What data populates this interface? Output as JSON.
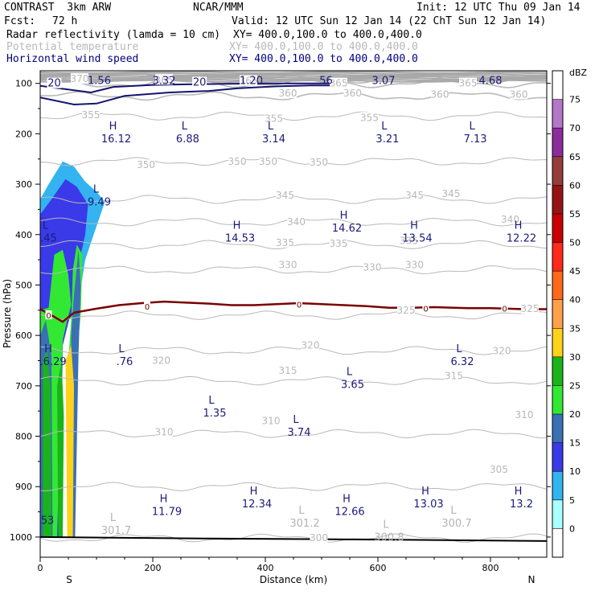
{
  "header": {
    "model": "CONTRAST  3km ARW",
    "org": "NCAR/MMM",
    "init": "Init: 12 UTC Thu 09 Jan 14",
    "fcst_label": "Fcst:",
    "fcst_value": "72 h",
    "valid": "Valid: 12 UTC Sun 12 Jan 14 (22 ChT Sun 12 Jan 14)",
    "fields": [
      {
        "name": "Radar reflectivity (lamda = 10 cm)",
        "xy": "XY= 400.0,100.0 to 400.0,400.0",
        "style": "black"
      },
      {
        "name": "Potential temperature",
        "xy": "XY= 400.0,100.0 to 400.0,400.0",
        "style": "gray"
      },
      {
        "name": "Horizontal wind speed",
        "xy": "XY= 400.0,100.0 to 400.0,400.0",
        "style": "blue"
      }
    ]
  },
  "chart_data": {
    "type": "contour-cross-section",
    "xlabel": "Distance (km)",
    "ylabel": "Pressure (hPa)",
    "xlim": [
      0,
      900
    ],
    "ylim": [
      1040,
      75
    ],
    "x_ticks": [
      0,
      200,
      400,
      600,
      800
    ],
    "y_ticks": [
      100,
      200,
      300,
      400,
      500,
      600,
      700,
      800,
      900,
      1000
    ],
    "x_end_labels": {
      "left": "S",
      "right": "N"
    },
    "colorbar": {
      "unit": "dBZ",
      "levels": [
        "0",
        "5",
        "10",
        "15",
        "20",
        "25",
        "30",
        "35",
        "40",
        "45",
        "50",
        "55",
        "60",
        "65",
        "70",
        "75"
      ],
      "colors": [
        "#ffffff",
        "#aaffff",
        "#33b4f0",
        "#3a3ae8",
        "#3a70b4",
        "#33e833",
        "#1ab41a",
        "#ffd21a",
        "#ffa04a",
        "#ff6a1a",
        "#ff2a1a",
        "#c80000",
        "#961414",
        "#963c3c",
        "#8c2c9c",
        "#b476c8",
        "#ffffff"
      ]
    },
    "theta_contours": [
      {
        "label": "300",
        "p": 1002
      },
      {
        "label": "305",
        "p": 900
      },
      {
        "label": "310",
        "p": 795
      },
      {
        "label": "315",
        "p": 690
      },
      {
        "label": "320",
        "p": 630
      },
      {
        "label": "325",
        "p": 560
      },
      {
        "label": "330",
        "p": 470
      },
      {
        "label": "335",
        "p": 420
      },
      {
        "label": "340",
        "p": 375
      },
      {
        "label": "345",
        "p": 330
      },
      {
        "label": "350",
        "p": 255
      },
      {
        "label": "355",
        "p": 165
      },
      {
        "label": "360",
        "p": 125
      },
      {
        "label": "365",
        "p": 100
      },
      {
        "label": "370",
        "p": 92
      }
    ],
    "theta_labels": [
      {
        "text": "350",
        "x": 188,
        "p": 262
      },
      {
        "text": "350",
        "x": 350,
        "p": 255
      },
      {
        "text": "350",
        "x": 405,
        "p": 255
      },
      {
        "text": "350",
        "x": 495,
        "p": 257
      },
      {
        "text": "355",
        "x": 90,
        "p": 163
      },
      {
        "text": "355",
        "x": 415,
        "p": 170
      },
      {
        "text": "355",
        "x": 585,
        "p": 168
      },
      {
        "text": "360",
        "x": 440,
        "p": 120
      },
      {
        "text": "360",
        "x": 555,
        "p": 120
      },
      {
        "text": "360",
        "x": 710,
        "p": 122
      },
      {
        "text": "360",
        "x": 850,
        "p": 122
      },
      {
        "text": "365",
        "x": 220,
        "p": 93
      },
      {
        "text": "365",
        "x": 370,
        "p": 95
      },
      {
        "text": "365",
        "x": 530,
        "p": 100
      },
      {
        "text": "365",
        "x": 760,
        "p": 100
      },
      {
        "text": "370",
        "x": 70,
        "p": 91
      },
      {
        "text": "345",
        "x": 435,
        "p": 322
      },
      {
        "text": "345",
        "x": 665,
        "p": 322
      },
      {
        "text": "345",
        "x": 730,
        "p": 319
      },
      {
        "text": "340",
        "x": 455,
        "p": 375
      },
      {
        "text": "340",
        "x": 835,
        "p": 370
      },
      {
        "text": "335",
        "x": 435,
        "p": 416
      },
      {
        "text": "335",
        "x": 530,
        "p": 418
      },
      {
        "text": "335",
        "x": 655,
        "p": 412
      },
      {
        "text": "330",
        "x": 440,
        "p": 460
      },
      {
        "text": "330",
        "x": 590,
        "p": 465
      },
      {
        "text": "330",
        "x": 665,
        "p": 460
      },
      {
        "text": "325",
        "x": 650,
        "p": 550
      },
      {
        "text": "325",
        "x": 870,
        "p": 547
      },
      {
        "text": "320",
        "x": 215,
        "p": 650
      },
      {
        "text": "320",
        "x": 480,
        "p": 620
      },
      {
        "text": "320",
        "x": 820,
        "p": 631
      },
      {
        "text": "315",
        "x": 440,
        "p": 670
      },
      {
        "text": "315",
        "x": 735,
        "p": 680
      },
      {
        "text": "310",
        "x": 220,
        "p": 792
      },
      {
        "text": "310",
        "x": 410,
        "p": 770
      },
      {
        "text": "310",
        "x": 860,
        "p": 758
      },
      {
        "text": "305",
        "x": 815,
        "p": 866
      },
      {
        "text": "300",
        "x": 495,
        "p": 1002
      }
    ],
    "extrema": [
      {
        "kind": "L",
        "value": "1.56",
        "x": 105,
        "p": 82,
        "style": "blue"
      },
      {
        "kind": "L",
        "value": "3.32",
        "x": 220,
        "p": 82,
        "style": "blue"
      },
      {
        "kind": "L",
        "value": "1.20",
        "x": 375,
        "p": 82,
        "style": "blue"
      },
      {
        "kind": "L",
        "value": ".56",
        "x": 505,
        "p": 82,
        "style": "blue"
      },
      {
        "kind": "L",
        "value": "3.07",
        "x": 610,
        "p": 82,
        "style": "blue"
      },
      {
        "kind": "L",
        "value": "4.68",
        "x": 800,
        "p": 82,
        "style": "blue"
      },
      {
        "kind": "H",
        "value": "16.12",
        "x": 135,
        "p": 198,
        "style": "blue"
      },
      {
        "kind": "L",
        "value": "6.88",
        "x": 262,
        "p": 198,
        "style": "blue"
      },
      {
        "kind": "L",
        "value": "3.14",
        "x": 415,
        "p": 198,
        "style": "blue"
      },
      {
        "kind": "L",
        "value": "3.21",
        "x": 617,
        "p": 198,
        "style": "blue"
      },
      {
        "kind": "L",
        "value": "7.13",
        "x": 773,
        "p": 198,
        "style": "blue"
      },
      {
        "kind": "L",
        "value": "9.49",
        "x": 105,
        "p": 323,
        "style": "blue"
      },
      {
        "kind": "L",
        "value": ".45",
        "x": 15,
        "p": 395,
        "style": "blue"
      },
      {
        "kind": "H",
        "value": "14.53",
        "x": 355,
        "p": 395,
        "style": "blue"
      },
      {
        "kind": "H",
        "value": "14.62",
        "x": 545,
        "p": 375,
        "style": "blue"
      },
      {
        "kind": "H",
        "value": "13.54",
        "x": 670,
        "p": 395,
        "style": "blue"
      },
      {
        "kind": "H",
        "value": "12.22",
        "x": 855,
        "p": 395,
        "style": "blue"
      },
      {
        "kind": "H",
        "value": "16.29",
        "x": 20,
        "p": 640,
        "style": "blue"
      },
      {
        "kind": "L",
        "value": ".76",
        "x": 150,
        "p": 640,
        "style": "blue"
      },
      {
        "kind": "L",
        "value": "6.32",
        "x": 750,
        "p": 640,
        "style": "blue"
      },
      {
        "kind": "L",
        "value": "3.65",
        "x": 555,
        "p": 685,
        "style": "blue"
      },
      {
        "kind": "L",
        "value": "1.35",
        "x": 310,
        "p": 742,
        "style": "blue"
      },
      {
        "kind": "L",
        "value": "3.74",
        "x": 460,
        "p": 780,
        "style": "blue"
      },
      {
        "kind": "H",
        "value": "11.79",
        "x": 225,
        "p": 937,
        "style": "blue"
      },
      {
        "kind": "H",
        "value": "12.34",
        "x": 385,
        "p": 922,
        "style": "blue"
      },
      {
        "kind": "H",
        "value": "12.66",
        "x": 550,
        "p": 937,
        "style": "blue"
      },
      {
        "kind": "H",
        "value": "13.03",
        "x": 690,
        "p": 922,
        "style": "blue"
      },
      {
        "kind": "H",
        "value": "13.2",
        "x": 855,
        "p": 922,
        "style": "blue"
      },
      {
        "kind": "",
        "value": ".53",
        "x": 10,
        "p": 955,
        "style": "blue"
      },
      {
        "kind": "L",
        "value": "301.7",
        "x": 135,
        "p": 975,
        "style": "gray"
      },
      {
        "kind": "L",
        "value": "301.2",
        "x": 470,
        "p": 960,
        "style": "gray"
      },
      {
        "kind": "L",
        "value": "300.8",
        "x": 620,
        "p": 988,
        "style": "gray"
      },
      {
        "kind": "L",
        "value": "300.7",
        "x": 740,
        "p": 960,
        "style": "gray"
      }
    ],
    "wind_contour_labels": [
      {
        "text": "20",
        "x": 25,
        "p": 100
      },
      {
        "text": "20",
        "x": 283,
        "p": 98
      }
    ],
    "wind_jet_contour": [
      [
        0,
        128
      ],
      [
        60,
        142
      ],
      [
        100,
        140
      ],
      [
        150,
        125
      ],
      [
        230,
        118
      ],
      [
        300,
        115
      ],
      [
        350,
        110
      ],
      [
        380,
        108
      ],
      [
        420,
        106
      ],
      [
        480,
        104
      ],
      [
        530,
        104
      ]
    ],
    "wind_jet_inner": [
      [
        0,
        105
      ],
      [
        90,
        118
      ],
      [
        130,
        107
      ],
      [
        200,
        103
      ],
      [
        260,
        102
      ],
      [
        330,
        101
      ],
      [
        400,
        100
      ],
      [
        470,
        100
      ],
      [
        530,
        100
      ]
    ],
    "zero_c_isotherm": {
      "label": "0",
      "points": [
        [
          0,
          548
        ],
        [
          20,
          560
        ],
        [
          40,
          573
        ],
        [
          60,
          555
        ],
        [
          100,
          547
        ],
        [
          140,
          540
        ],
        [
          180,
          536
        ],
        [
          220,
          533
        ],
        [
          260,
          535
        ],
        [
          300,
          537
        ],
        [
          340,
          540
        ],
        [
          380,
          540
        ],
        [
          420,
          538
        ],
        [
          460,
          536
        ],
        [
          500,
          538
        ],
        [
          540,
          540
        ],
        [
          580,
          542
        ],
        [
          620,
          545
        ],
        [
          660,
          545
        ],
        [
          700,
          544
        ],
        [
          760,
          546
        ],
        [
          800,
          546
        ],
        [
          860,
          548
        ],
        [
          900,
          548
        ]
      ],
      "label_positions": [
        [
          15,
          560
        ],
        [
          190,
          542
        ],
        [
          460,
          538
        ],
        [
          685,
          546
        ],
        [
          825,
          546
        ]
      ]
    },
    "surface_line": [
      [
        0,
        1000
      ],
      [
        300,
        1003
      ],
      [
        600,
        1005
      ],
      [
        900,
        1008
      ]
    ],
    "reflectivity_cells": [
      {
        "dbz": 5,
        "poly": [
          [
            0,
            330
          ],
          [
            15,
            300
          ],
          [
            40,
            255
          ],
          [
            60,
            265
          ],
          [
            80,
            295
          ],
          [
            100,
            315
          ],
          [
            115,
            335
          ],
          [
            95,
            400
          ],
          [
            80,
            450
          ],
          [
            70,
            520
          ],
          [
            60,
            560
          ],
          [
            50,
            570
          ],
          [
            40,
            600
          ],
          [
            35,
            1000
          ],
          [
            0,
            1000
          ]
        ]
      },
      {
        "dbz": 10,
        "poly": [
          [
            0,
            360
          ],
          [
            20,
            330
          ],
          [
            45,
            290
          ],
          [
            65,
            305
          ],
          [
            85,
            340
          ],
          [
            80,
            400
          ],
          [
            70,
            450
          ],
          [
            60,
            540
          ],
          [
            50,
            575
          ],
          [
            40,
            620
          ],
          [
            35,
            1000
          ],
          [
            0,
            1000
          ]
        ]
      },
      {
        "dbz": 20,
        "poly": [
          [
            0,
            550
          ],
          [
            15,
            545
          ],
          [
            25,
            440
          ],
          [
            40,
            430
          ],
          [
            50,
            480
          ],
          [
            55,
            540
          ],
          [
            48,
            570
          ],
          [
            40,
            610
          ],
          [
            30,
            1000
          ],
          [
            0,
            1000
          ]
        ]
      },
      {
        "dbz": 20,
        "poly": [
          [
            55,
            570
          ],
          [
            58,
            470
          ],
          [
            65,
            420
          ],
          [
            75,
            440
          ],
          [
            72,
            560
          ],
          [
            65,
            640
          ],
          [
            60,
            1000
          ],
          [
            53,
            1000
          ],
          [
            50,
            650
          ]
        ]
      },
      {
        "dbz": 15,
        "poly": [
          [
            0,
            600
          ],
          [
            10,
            570
          ],
          [
            20,
            640
          ],
          [
            22,
            1000
          ],
          [
            0,
            1000
          ]
        ]
      },
      {
        "dbz": 15,
        "poly": [
          [
            55,
            600
          ],
          [
            60,
            520
          ],
          [
            68,
            430
          ],
          [
            72,
            500
          ],
          [
            68,
            640
          ],
          [
            62,
            1000
          ],
          [
            55,
            1000
          ]
        ]
      },
      {
        "dbz": 25,
        "poly": [
          [
            5,
            650
          ],
          [
            12,
            630
          ],
          [
            18,
            700
          ],
          [
            20,
            1000
          ],
          [
            5,
            1000
          ]
        ]
      },
      {
        "dbz": 30,
        "poly": [
          [
            45,
            650
          ],
          [
            55,
            620
          ],
          [
            60,
            700
          ],
          [
            58,
            1000
          ],
          [
            48,
            1000
          ]
        ]
      },
      {
        "dbz": 25,
        "poly": [
          [
            30,
            700
          ],
          [
            38,
            650
          ],
          [
            42,
            760
          ],
          [
            40,
            1000
          ],
          [
            32,
            1000
          ]
        ]
      }
    ]
  }
}
